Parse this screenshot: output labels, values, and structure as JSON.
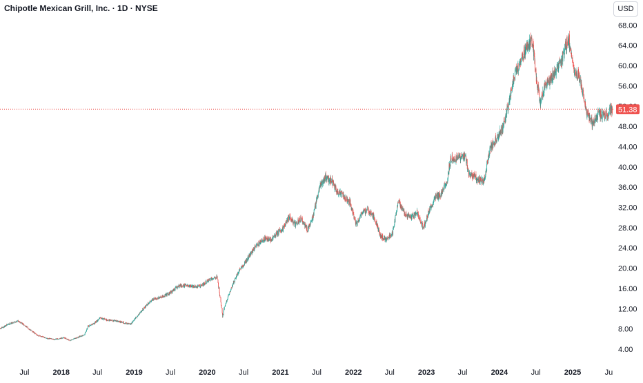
{
  "header": {
    "title": "Chipotle Mexican Grill, Inc. · 1D · NYSE",
    "currency_label": "USD"
  },
  "colors": {
    "up": "#26a69a",
    "down": "#ef5350",
    "last_price_line": "#ef5350",
    "axis_text": "#131722"
  },
  "chart_data": {
    "type": "candlestick",
    "title": "Chipotle Mexican Grill, Inc. · 1D · NYSE",
    "currency": "USD",
    "last_price": 51.38,
    "last_price_label": "51.38",
    "y_ticks": [
      "4.00",
      "8.00",
      "12.00",
      "16.00",
      "20.00",
      "24.00",
      "28.00",
      "32.00",
      "36.00",
      "40.00",
      "44.00",
      "48.00",
      "52.00",
      "56.00",
      "60.00",
      "64.00",
      "68.00"
    ],
    "ylim": [
      1.0,
      70.5
    ],
    "xlim": [
      "2017-03-01",
      "2025-07-20"
    ],
    "x_ticks": [
      {
        "date": "2017-07-01",
        "label": "Jul",
        "bold": false
      },
      {
        "date": "2018-01-01",
        "label": "2018",
        "bold": true
      },
      {
        "date": "2018-07-01",
        "label": "Jul",
        "bold": false
      },
      {
        "date": "2019-01-01",
        "label": "2019",
        "bold": true
      },
      {
        "date": "2019-07-01",
        "label": "Jul",
        "bold": false
      },
      {
        "date": "2020-01-01",
        "label": "2020",
        "bold": true
      },
      {
        "date": "2020-07-01",
        "label": "Jul",
        "bold": false
      },
      {
        "date": "2021-01-01",
        "label": "2021",
        "bold": true
      },
      {
        "date": "2021-07-01",
        "label": "Jul",
        "bold": false
      },
      {
        "date": "2022-01-01",
        "label": "2022",
        "bold": true
      },
      {
        "date": "2022-07-01",
        "label": "Jul",
        "bold": false
      },
      {
        "date": "2023-01-01",
        "label": "2023",
        "bold": true
      },
      {
        "date": "2023-07-01",
        "label": "Jul",
        "bold": false
      },
      {
        "date": "2024-01-01",
        "label": "2024",
        "bold": true
      },
      {
        "date": "2024-07-01",
        "label": "Jul",
        "bold": false
      },
      {
        "date": "2025-01-01",
        "label": "2025",
        "bold": true
      },
      {
        "date": "2025-07-01",
        "label": "Ju",
        "bold": false
      }
    ],
    "price_path": [
      [
        "2017-03-01",
        8.0
      ],
      [
        "2017-04-15",
        9.0
      ],
      [
        "2017-06-01",
        9.6
      ],
      [
        "2017-07-15",
        8.3
      ],
      [
        "2017-09-01",
        6.8
      ],
      [
        "2017-10-15",
        6.2
      ],
      [
        "2017-12-01",
        5.9
      ],
      [
        "2018-01-15",
        6.3
      ],
      [
        "2018-02-15",
        5.7
      ],
      [
        "2018-03-15",
        6.2
      ],
      [
        "2018-04-25",
        6.8
      ],
      [
        "2018-05-15",
        8.5
      ],
      [
        "2018-06-15",
        9.1
      ],
      [
        "2018-07-15",
        10.2
      ],
      [
        "2018-08-15",
        9.8
      ],
      [
        "2018-10-01",
        9.6
      ],
      [
        "2018-12-15",
        8.9
      ],
      [
        "2019-01-15",
        10.5
      ],
      [
        "2019-02-15",
        12.0
      ],
      [
        "2019-04-01",
        13.8
      ],
      [
        "2019-05-15",
        14.2
      ],
      [
        "2019-07-01",
        15.2
      ],
      [
        "2019-08-15",
        16.6
      ],
      [
        "2019-10-01",
        16.5
      ],
      [
        "2019-11-15",
        16.3
      ],
      [
        "2019-12-15",
        16.9
      ],
      [
        "2020-01-20",
        17.9
      ],
      [
        "2020-02-20",
        18.3
      ],
      [
        "2020-03-18",
        10.5
      ],
      [
        "2020-03-25",
        12.0
      ],
      [
        "2020-04-25",
        15.5
      ],
      [
        "2020-05-25",
        18.5
      ],
      [
        "2020-07-15",
        21.5
      ],
      [
        "2020-09-01",
        24.5
      ],
      [
        "2020-10-15",
        25.8
      ],
      [
        "2020-11-15",
        25.6
      ],
      [
        "2021-01-15",
        28.0
      ],
      [
        "2021-02-15",
        30.2
      ],
      [
        "2021-03-15",
        28.5
      ],
      [
        "2021-04-15",
        29.8
      ],
      [
        "2021-05-15",
        27.5
      ],
      [
        "2021-06-15",
        30.5
      ],
      [
        "2021-07-15",
        36.0
      ],
      [
        "2021-08-15",
        38.0
      ],
      [
        "2021-09-15",
        37.2
      ],
      [
        "2021-10-15",
        35.0
      ],
      [
        "2021-11-15",
        34.2
      ],
      [
        "2021-12-15",
        33.0
      ],
      [
        "2022-01-15",
        28.5
      ],
      [
        "2022-02-15",
        31.0
      ],
      [
        "2022-03-15",
        31.5
      ],
      [
        "2022-04-15",
        30.0
      ],
      [
        "2022-05-15",
        26.5
      ],
      [
        "2022-06-15",
        25.5
      ],
      [
        "2022-07-15",
        27.0
      ],
      [
        "2022-08-15",
        33.5
      ],
      [
        "2022-09-15",
        30.5
      ],
      [
        "2022-10-15",
        30.0
      ],
      [
        "2022-11-15",
        31.0
      ],
      [
        "2022-12-15",
        27.8
      ],
      [
        "2023-01-15",
        31.5
      ],
      [
        "2023-02-15",
        34.0
      ],
      [
        "2023-03-15",
        34.5
      ],
      [
        "2023-04-15",
        37.5
      ],
      [
        "2023-05-01",
        41.5
      ],
      [
        "2023-06-15",
        41.8
      ],
      [
        "2023-07-15",
        42.0
      ],
      [
        "2023-08-01",
        38.8
      ],
      [
        "2023-09-15",
        37.5
      ],
      [
        "2023-10-15",
        37.0
      ],
      [
        "2023-11-15",
        43.5
      ],
      [
        "2023-12-15",
        45.5
      ],
      [
        "2024-01-15",
        47.5
      ],
      [
        "2024-02-15",
        52.0
      ],
      [
        "2024-03-15",
        58.0
      ],
      [
        "2024-04-15",
        60.5
      ],
      [
        "2024-05-15",
        63.5
      ],
      [
        "2024-06-15",
        65.0
      ],
      [
        "2024-07-05",
        57.0
      ],
      [
        "2024-07-25",
        52.5
      ],
      [
        "2024-08-15",
        56.5
      ],
      [
        "2024-09-15",
        57.5
      ],
      [
        "2024-10-15",
        59.5
      ],
      [
        "2024-11-15",
        62.0
      ],
      [
        "2024-12-10",
        65.5
      ],
      [
        "2025-01-10",
        58.5
      ],
      [
        "2025-02-01",
        58.0
      ],
      [
        "2025-02-25",
        54.0
      ],
      [
        "2025-03-15",
        50.5
      ],
      [
        "2025-04-10",
        48.5
      ],
      [
        "2025-05-10",
        50.5
      ],
      [
        "2025-06-10",
        50.2
      ],
      [
        "2025-07-20",
        51.4
      ]
    ]
  }
}
